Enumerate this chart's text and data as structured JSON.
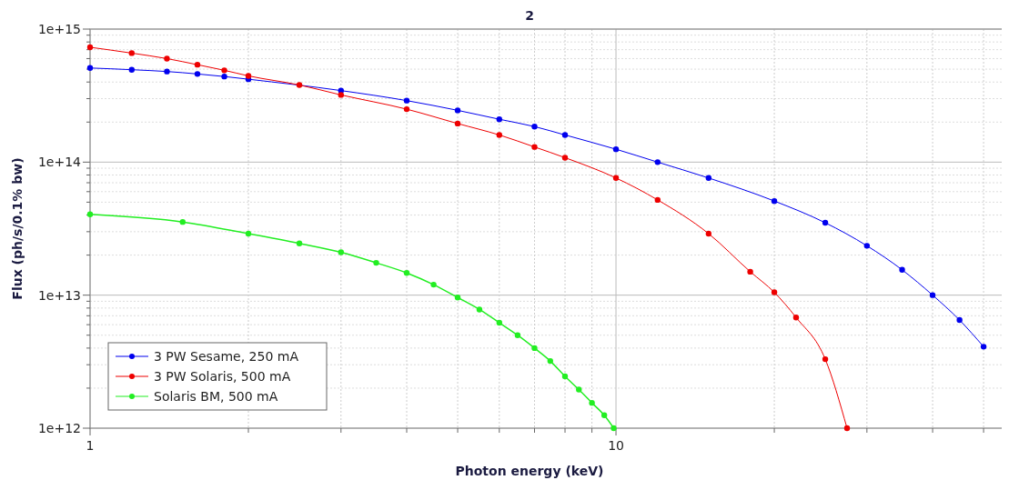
{
  "chart_data": {
    "type": "line",
    "title": "2",
    "xlabel": "Photon energy (keV)",
    "ylabel": "Flux (ph/s/0.1% bw)",
    "log": "xy",
    "grid": true,
    "legend": "bottom left",
    "marker": "circle",
    "line_style": "solid",
    "xlim": [
      1,
      55
    ],
    "ylim": [
      1000000000000.0,
      1000000000000000.0
    ],
    "xticks": [
      1,
      {
        "value": 2,
        "label": null
      },
      {
        "value": 3,
        "label": null
      },
      {
        "value": 4,
        "label": null
      },
      {
        "value": 5,
        "label": null
      },
      {
        "value": 6,
        "label": null
      },
      {
        "value": 7,
        "label": null
      },
      {
        "value": 8,
        "label": null
      },
      {
        "value": 9,
        "label": null
      },
      10,
      {
        "value": 20,
        "label": null
      },
      {
        "value": 30,
        "label": null
      },
      {
        "value": 40,
        "label": null
      },
      {
        "value": 50,
        "label": null
      }
    ],
    "yticks": [
      {
        "value": 1000000000000.0,
        "label": "1e+12"
      },
      {
        "value": 2000000000000.0,
        "label": null
      },
      {
        "value": 3000000000000.0,
        "label": null
      },
      {
        "value": 4000000000000.0,
        "label": null
      },
      {
        "value": 5000000000000.0,
        "label": null
      },
      {
        "value": 6000000000000.0,
        "label": null
      },
      {
        "value": 7000000000000.0,
        "label": null
      },
      {
        "value": 8000000000000.0,
        "label": null
      },
      {
        "value": 9000000000000.0,
        "label": null
      },
      {
        "value": 10000000000000.0,
        "label": "1e+13"
      },
      {
        "value": 20000000000000.0,
        "label": null
      },
      {
        "value": 30000000000000.0,
        "label": null
      },
      {
        "value": 40000000000000.0,
        "label": null
      },
      {
        "value": 50000000000000.0,
        "label": null
      },
      {
        "value": 60000000000000.0,
        "label": null
      },
      {
        "value": 70000000000000.0,
        "label": null
      },
      {
        "value": 80000000000000.0,
        "label": null
      },
      {
        "value": 90000000000000.0,
        "label": null
      },
      {
        "value": 100000000000000.0,
        "label": "1e+14"
      },
      {
        "value": 200000000000000.0,
        "label": null
      },
      {
        "value": 300000000000000.0,
        "label": null
      },
      {
        "value": 400000000000000.0,
        "label": null
      },
      {
        "value": 500000000000000.0,
        "label": null
      },
      {
        "value": 600000000000000.0,
        "label": null
      },
      {
        "value": 700000000000000.0,
        "label": null
      },
      {
        "value": 800000000000000.0,
        "label": null
      },
      {
        "value": 900000000000000.0,
        "label": null
      },
      {
        "value": 1000000000000000.0,
        "label": "1e+15"
      }
    ],
    "series": [
      {
        "name": "3 PW Sesame, 250 mA",
        "color": "#0000ee",
        "x": [
          1,
          1.2,
          1.4,
          1.6,
          1.8,
          2,
          3,
          4,
          5,
          6,
          7,
          8,
          10,
          12,
          15,
          20,
          25,
          30,
          35,
          40,
          45,
          50
        ],
        "values": [
          510000000000000.0,
          495000000000000.0,
          480000000000000.0,
          460000000000000.0,
          440000000000000.0,
          420000000000000.0,
          345000000000000.0,
          290000000000000.0,
          245000000000000.0,
          210000000000000.0,
          185000000000000.0,
          160000000000000.0,
          125000000000000.0,
          100000000000000.0,
          76000000000000.0,
          51000000000000.0,
          35000000000000.0,
          23500000000000.0,
          15500000000000.0,
          10000000000000.0,
          6500000000000.0,
          4100000000000.0
        ]
      },
      {
        "name": "3 PW Solaris, 500 mA",
        "color": "#ee0000",
        "x": [
          1,
          1.2,
          1.4,
          1.6,
          1.8,
          2,
          2.5,
          3,
          4,
          5,
          6,
          7,
          8,
          10,
          12,
          15,
          18,
          20,
          22,
          25,
          27.5
        ],
        "values": [
          730000000000000.0,
          660000000000000.0,
          600000000000000.0,
          540000000000000.0,
          490000000000000.0,
          445000000000000.0,
          380000000000000.0,
          320000000000000.0,
          250000000000000.0,
          195000000000000.0,
          160000000000000.0,
          130000000000000.0,
          108000000000000.0,
          76000000000000.0,
          52000000000000.0,
          29000000000000.0,
          15000000000000.0,
          10500000000000.0,
          6800000000000.0,
          3300000000000.0,
          1000000000000.0
        ]
      },
      {
        "name": "Solaris BM, 500 mA",
        "color": "#22ee22",
        "x": [
          1,
          1.5,
          2,
          2.5,
          3,
          3.5,
          4,
          4.5,
          5,
          5.5,
          6,
          6.5,
          7,
          7.5,
          8,
          8.5,
          9,
          9.5,
          9.9
        ],
        "values": [
          40500000000000.0,
          35500000000000.0,
          29000000000000.0,
          24500000000000.0,
          21000000000000.0,
          17500000000000.0,
          14700000000000.0,
          12000000000000.0,
          9600000000000.0,
          7800000000000.0,
          6200000000000.0,
          5000000000000.0,
          4000000000000.0,
          3200000000000.0,
          2450000000000.0,
          1950000000000.0,
          1550000000000.0,
          1250000000000.0,
          1000000000000.0
        ]
      }
    ]
  }
}
